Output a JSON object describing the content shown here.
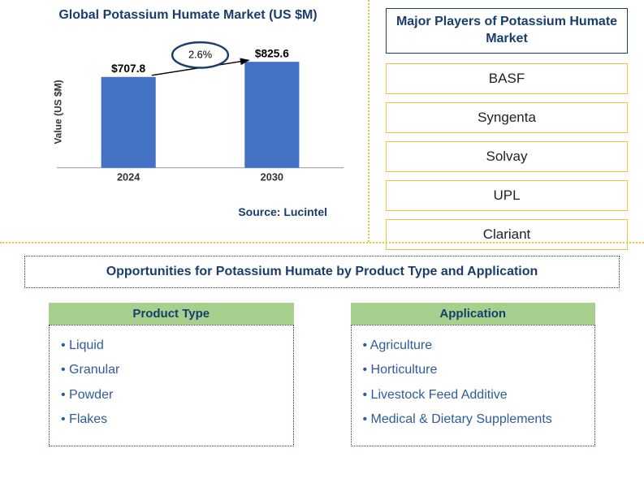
{
  "chart": {
    "title": "Global Potassium Humate Market (US $M)",
    "type": "bar",
    "y_axis_label": "Value (US $M)",
    "categories": [
      "2024",
      "2030"
    ],
    "values": [
      707.8,
      825.6
    ],
    "value_labels": [
      "$707.8",
      "$825.6"
    ],
    "bar_color": "#4472c4",
    "axis_color": "#999999",
    "label_color": "#333333",
    "label_fontsize": 13,
    "value_label_fontsize": 14,
    "value_label_weight": "bold",
    "growth_label": "2.6%",
    "growth_ellipse_stroke": "#1a3d6d",
    "growth_ellipse_fill": "#ffffff",
    "arrow_color": "#000000",
    "ylim": [
      0,
      900
    ],
    "bar_width_ratio": 0.38,
    "source": "Source: Lucintel",
    "background_color": "#ffffff"
  },
  "players": {
    "title": "Major Players of Potassium Humate Market",
    "items": [
      "BASF",
      "Syngenta",
      "Solvay",
      "UPL",
      "Clariant"
    ],
    "title_color": "#1a3d6d",
    "border_color": "#f0c040"
  },
  "opportunities": {
    "title": "Opportunities for Potassium Humate by Product Type and Application",
    "columns": [
      {
        "header": "Product Type",
        "items": [
          "Liquid",
          "Granular",
          "Powder",
          "Flakes"
        ]
      },
      {
        "header": "Application",
        "items": [
          "Agriculture",
          "Horticulture",
          "Livestock Feed Additive",
          "Medical & Dietary Supplements"
        ]
      }
    ],
    "header_bg": "#a8d08d",
    "header_color": "#1a3d6d",
    "item_color": "#2e5c9a",
    "border_color": "#1a3d6d"
  },
  "layout": {
    "divider_color": "#f0c040"
  }
}
